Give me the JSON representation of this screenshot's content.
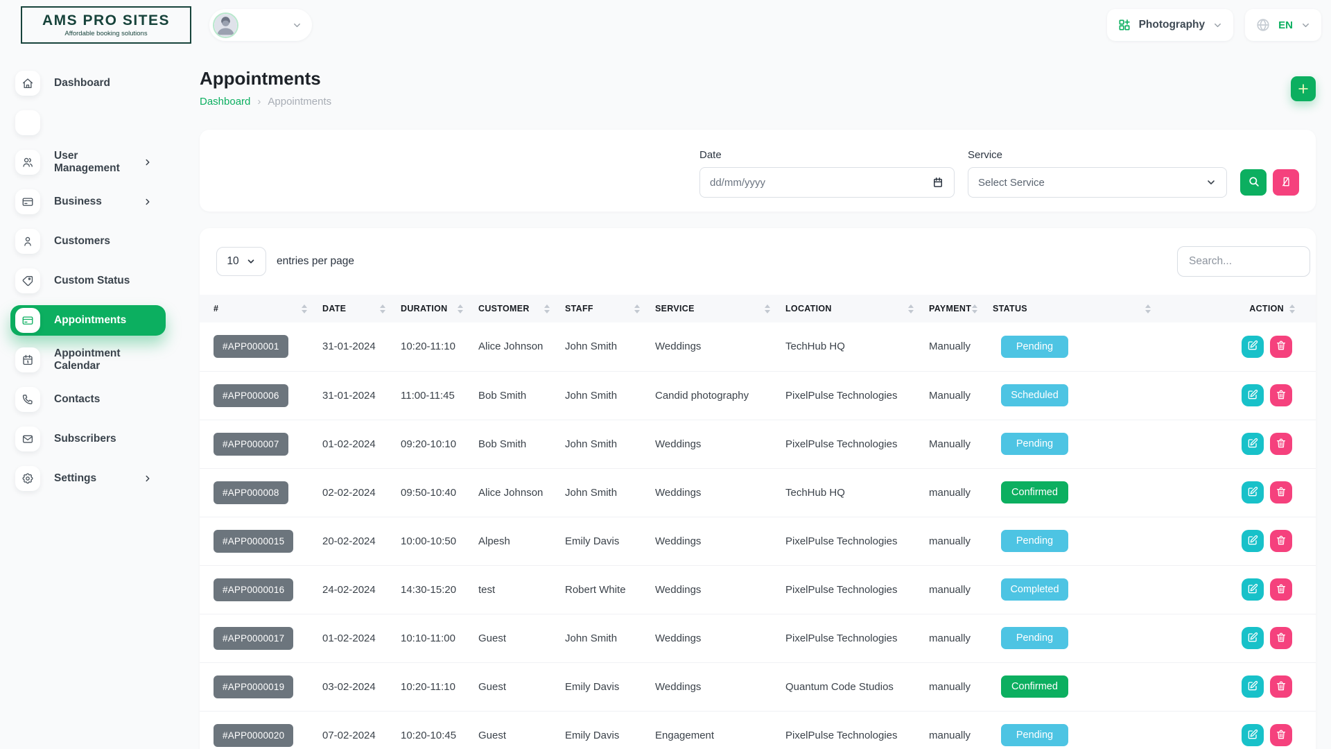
{
  "brand": {
    "name": "AMS PRO SITES",
    "tagline": "Affordable booking solutions"
  },
  "topbar": {
    "workspace": "Photography",
    "language": "EN"
  },
  "sidebar": {
    "items": [
      {
        "slug": "dashboard",
        "label": "Dashboard",
        "icon": "home-icon",
        "icon_key": "home"
      },
      {
        "slug": "blank",
        "label": "",
        "icon": "blank-icon",
        "icon_key": "none",
        "blank": true
      },
      {
        "slug": "user-management",
        "label": "User Management",
        "icon": "users-icon",
        "icon_key": "users",
        "chevron": true
      },
      {
        "slug": "business",
        "label": "Business",
        "icon": "credit-card-icon",
        "icon_key": "card",
        "chevron": true
      },
      {
        "slug": "customers",
        "label": "Customers",
        "icon": "user-icon",
        "icon_key": "user"
      },
      {
        "slug": "custom-status",
        "label": "Custom Status",
        "icon": "tag-icon",
        "icon_key": "tag"
      },
      {
        "slug": "appointments",
        "label": "Appointments",
        "icon": "appointments-icon",
        "icon_key": "card",
        "active": true
      },
      {
        "slug": "appointment-calendar",
        "label": "Appointment Calendar",
        "icon": "calendar-icon",
        "icon_key": "calendar"
      },
      {
        "slug": "contacts",
        "label": "Contacts",
        "icon": "phone-icon",
        "icon_key": "phone"
      },
      {
        "slug": "subscribers",
        "label": "Subscribers",
        "icon": "mail-icon",
        "icon_key": "mail"
      },
      {
        "slug": "settings",
        "label": "Settings",
        "icon": "gear-icon",
        "icon_key": "gear",
        "chevron": true
      }
    ]
  },
  "page": {
    "title": "Appointments",
    "breadcrumb_home": "Dashboard",
    "breadcrumb_separator": "›",
    "breadcrumb_current": "Appointments"
  },
  "filters": {
    "date_label": "Date",
    "date_placeholder": "dd/mm/yyyy",
    "service_label": "Service",
    "service_value": "Select Service"
  },
  "table": {
    "entries_value": "10",
    "entries_label": "entries per page",
    "search_placeholder": "Search...",
    "columns": [
      "#",
      "DATE",
      "DURATION",
      "CUSTOMER",
      "STAFF",
      "SERVICE",
      "LOCATION",
      "PAYMENT",
      "STATUS",
      "ACTION"
    ],
    "status_colors": {
      "Pending": "#4DC4E3",
      "Scheduled": "#4DC4E3",
      "Completed": "#4DC4E3",
      "Confirmed": "#0CAF60"
    },
    "rows": [
      {
        "id": "#APP000001",
        "date": "31-01-2024",
        "duration": "10:20-11:10",
        "customer": "Alice Johnson",
        "staff": "John Smith",
        "service": "Weddings",
        "location": "TechHub HQ",
        "payment": "Manually",
        "status": "Pending"
      },
      {
        "id": "#APP000006",
        "date": "31-01-2024",
        "duration": "11:00-11:45",
        "customer": "Bob Smith",
        "staff": "John Smith",
        "service": "Candid photography",
        "location": "PixelPulse Technologies",
        "payment": "Manually",
        "status": "Scheduled"
      },
      {
        "id": "#APP000007",
        "date": "01-02-2024",
        "duration": "09:20-10:10",
        "customer": "Bob Smith",
        "staff": "John Smith",
        "service": "Weddings",
        "location": "PixelPulse Technologies",
        "payment": "Manually",
        "status": "Pending"
      },
      {
        "id": "#APP000008",
        "date": "02-02-2024",
        "duration": "09:50-10:40",
        "customer": "Alice Johnson",
        "staff": "John Smith",
        "service": "Weddings",
        "location": "TechHub HQ",
        "payment": "manually",
        "status": "Confirmed"
      },
      {
        "id": "#APP0000015",
        "date": "20-02-2024",
        "duration": "10:00-10:50",
        "customer": "Alpesh",
        "staff": "Emily Davis",
        "service": "Weddings",
        "location": "PixelPulse Technologies",
        "payment": "manually",
        "status": "Pending"
      },
      {
        "id": "#APP0000016",
        "date": "24-02-2024",
        "duration": "14:30-15:20",
        "customer": "test",
        "staff": "Robert White",
        "service": "Weddings",
        "location": "PixelPulse Technologies",
        "payment": "manually",
        "status": "Completed"
      },
      {
        "id": "#APP0000017",
        "date": "01-02-2024",
        "duration": "10:10-11:00",
        "customer": "Guest",
        "staff": "John Smith",
        "service": "Weddings",
        "location": "PixelPulse Technologies",
        "payment": "manually",
        "status": "Pending"
      },
      {
        "id": "#APP0000019",
        "date": "03-02-2024",
        "duration": "10:20-11:10",
        "customer": "Guest",
        "staff": "Emily Davis",
        "service": "Weddings",
        "location": "Quantum Code Studios",
        "payment": "manually",
        "status": "Confirmed"
      },
      {
        "id": "#APP0000020",
        "date": "07-02-2024",
        "duration": "10:20-10:45",
        "customer": "Guest",
        "staff": "Emily Davis",
        "service": "Engagement",
        "location": "PixelPulse Technologies",
        "payment": "manually",
        "status": "Pending"
      }
    ]
  },
  "colors": {
    "primary_green": "#0CAF60",
    "brand_dark": "#17433B",
    "badge_gray": "#6C757D",
    "status_blue": "#4DC4E3",
    "status_green": "#0CAF60",
    "edit_teal": "#18C1C9",
    "delete_pink": "#F5417D"
  }
}
